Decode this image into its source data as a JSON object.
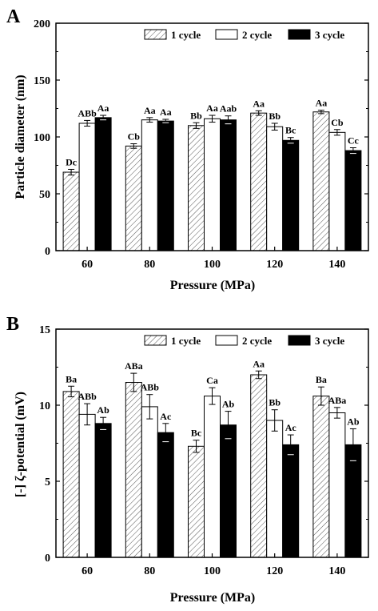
{
  "chart_data": [
    {
      "panel_label": "A",
      "type": "bar",
      "xlabel": "Pressure (MPa)",
      "ylabel": "Particle diameter (nm)",
      "ylim": [
        0,
        200
      ],
      "yticks": [
        0,
        50,
        100,
        150,
        200
      ],
      "categories": [
        "60",
        "80",
        "100",
        "120",
        "140"
      ],
      "legend_position": "top-right",
      "series": [
        {
          "name": "1 cycle",
          "fill": "hatch",
          "values": [
            69,
            92,
            110,
            121,
            122
          ],
          "errors": [
            2.5,
            2,
            2.5,
            2,
            1.5
          ],
          "labels": [
            "Dc",
            "Cb",
            "Bb",
            "Aa",
            "Aa"
          ]
        },
        {
          "name": "2 cycle",
          "fill": "white",
          "values": [
            112,
            115,
            116,
            109,
            104
          ],
          "errors": [
            2.5,
            2,
            3,
            3,
            2.5
          ],
          "labels": [
            "ABb",
            "Aa",
            "Aa",
            "Bb",
            "Cb"
          ]
        },
        {
          "name": "3 cycle",
          "fill": "black",
          "values": [
            117,
            114,
            115,
            97,
            88
          ],
          "errors": [
            2,
            1.5,
            3.5,
            2.5,
            2.5
          ],
          "labels": [
            "Aa",
            "Aa",
            "Aab",
            "Bc",
            "Cc"
          ]
        }
      ]
    },
    {
      "panel_label": "B",
      "type": "bar",
      "xlabel": "Pressure (MPa)",
      "ylabel": "[-] ζ-potential (mV)",
      "ylim": [
        0,
        15
      ],
      "yticks": [
        0,
        5,
        10,
        15
      ],
      "categories": [
        "60",
        "80",
        "100",
        "120",
        "140"
      ],
      "legend_position": "top-right",
      "series": [
        {
          "name": "1 cycle",
          "fill": "hatch",
          "values": [
            10.9,
            11.5,
            7.3,
            12.0,
            10.6
          ],
          "errors": [
            0.35,
            0.6,
            0.4,
            0.25,
            0.6
          ],
          "labels": [
            "Ba",
            "ABa",
            "Bc",
            "Aa",
            "Ba"
          ]
        },
        {
          "name": "2 cycle",
          "fill": "white",
          "values": [
            9.4,
            9.9,
            10.6,
            9.0,
            9.5
          ],
          "errors": [
            0.7,
            0.8,
            0.55,
            0.7,
            0.35
          ],
          "labels": [
            "ABb",
            "ABb",
            "Ca",
            "Bb",
            "ABa"
          ]
        },
        {
          "name": "3 cycle",
          "fill": "black",
          "values": [
            8.8,
            8.2,
            8.7,
            7.4,
            7.4
          ],
          "errors": [
            0.4,
            0.6,
            0.9,
            0.65,
            1.05
          ],
          "labels": [
            "Ab",
            "Ac",
            "Ab",
            "Ac",
            "Ab"
          ]
        }
      ]
    }
  ]
}
